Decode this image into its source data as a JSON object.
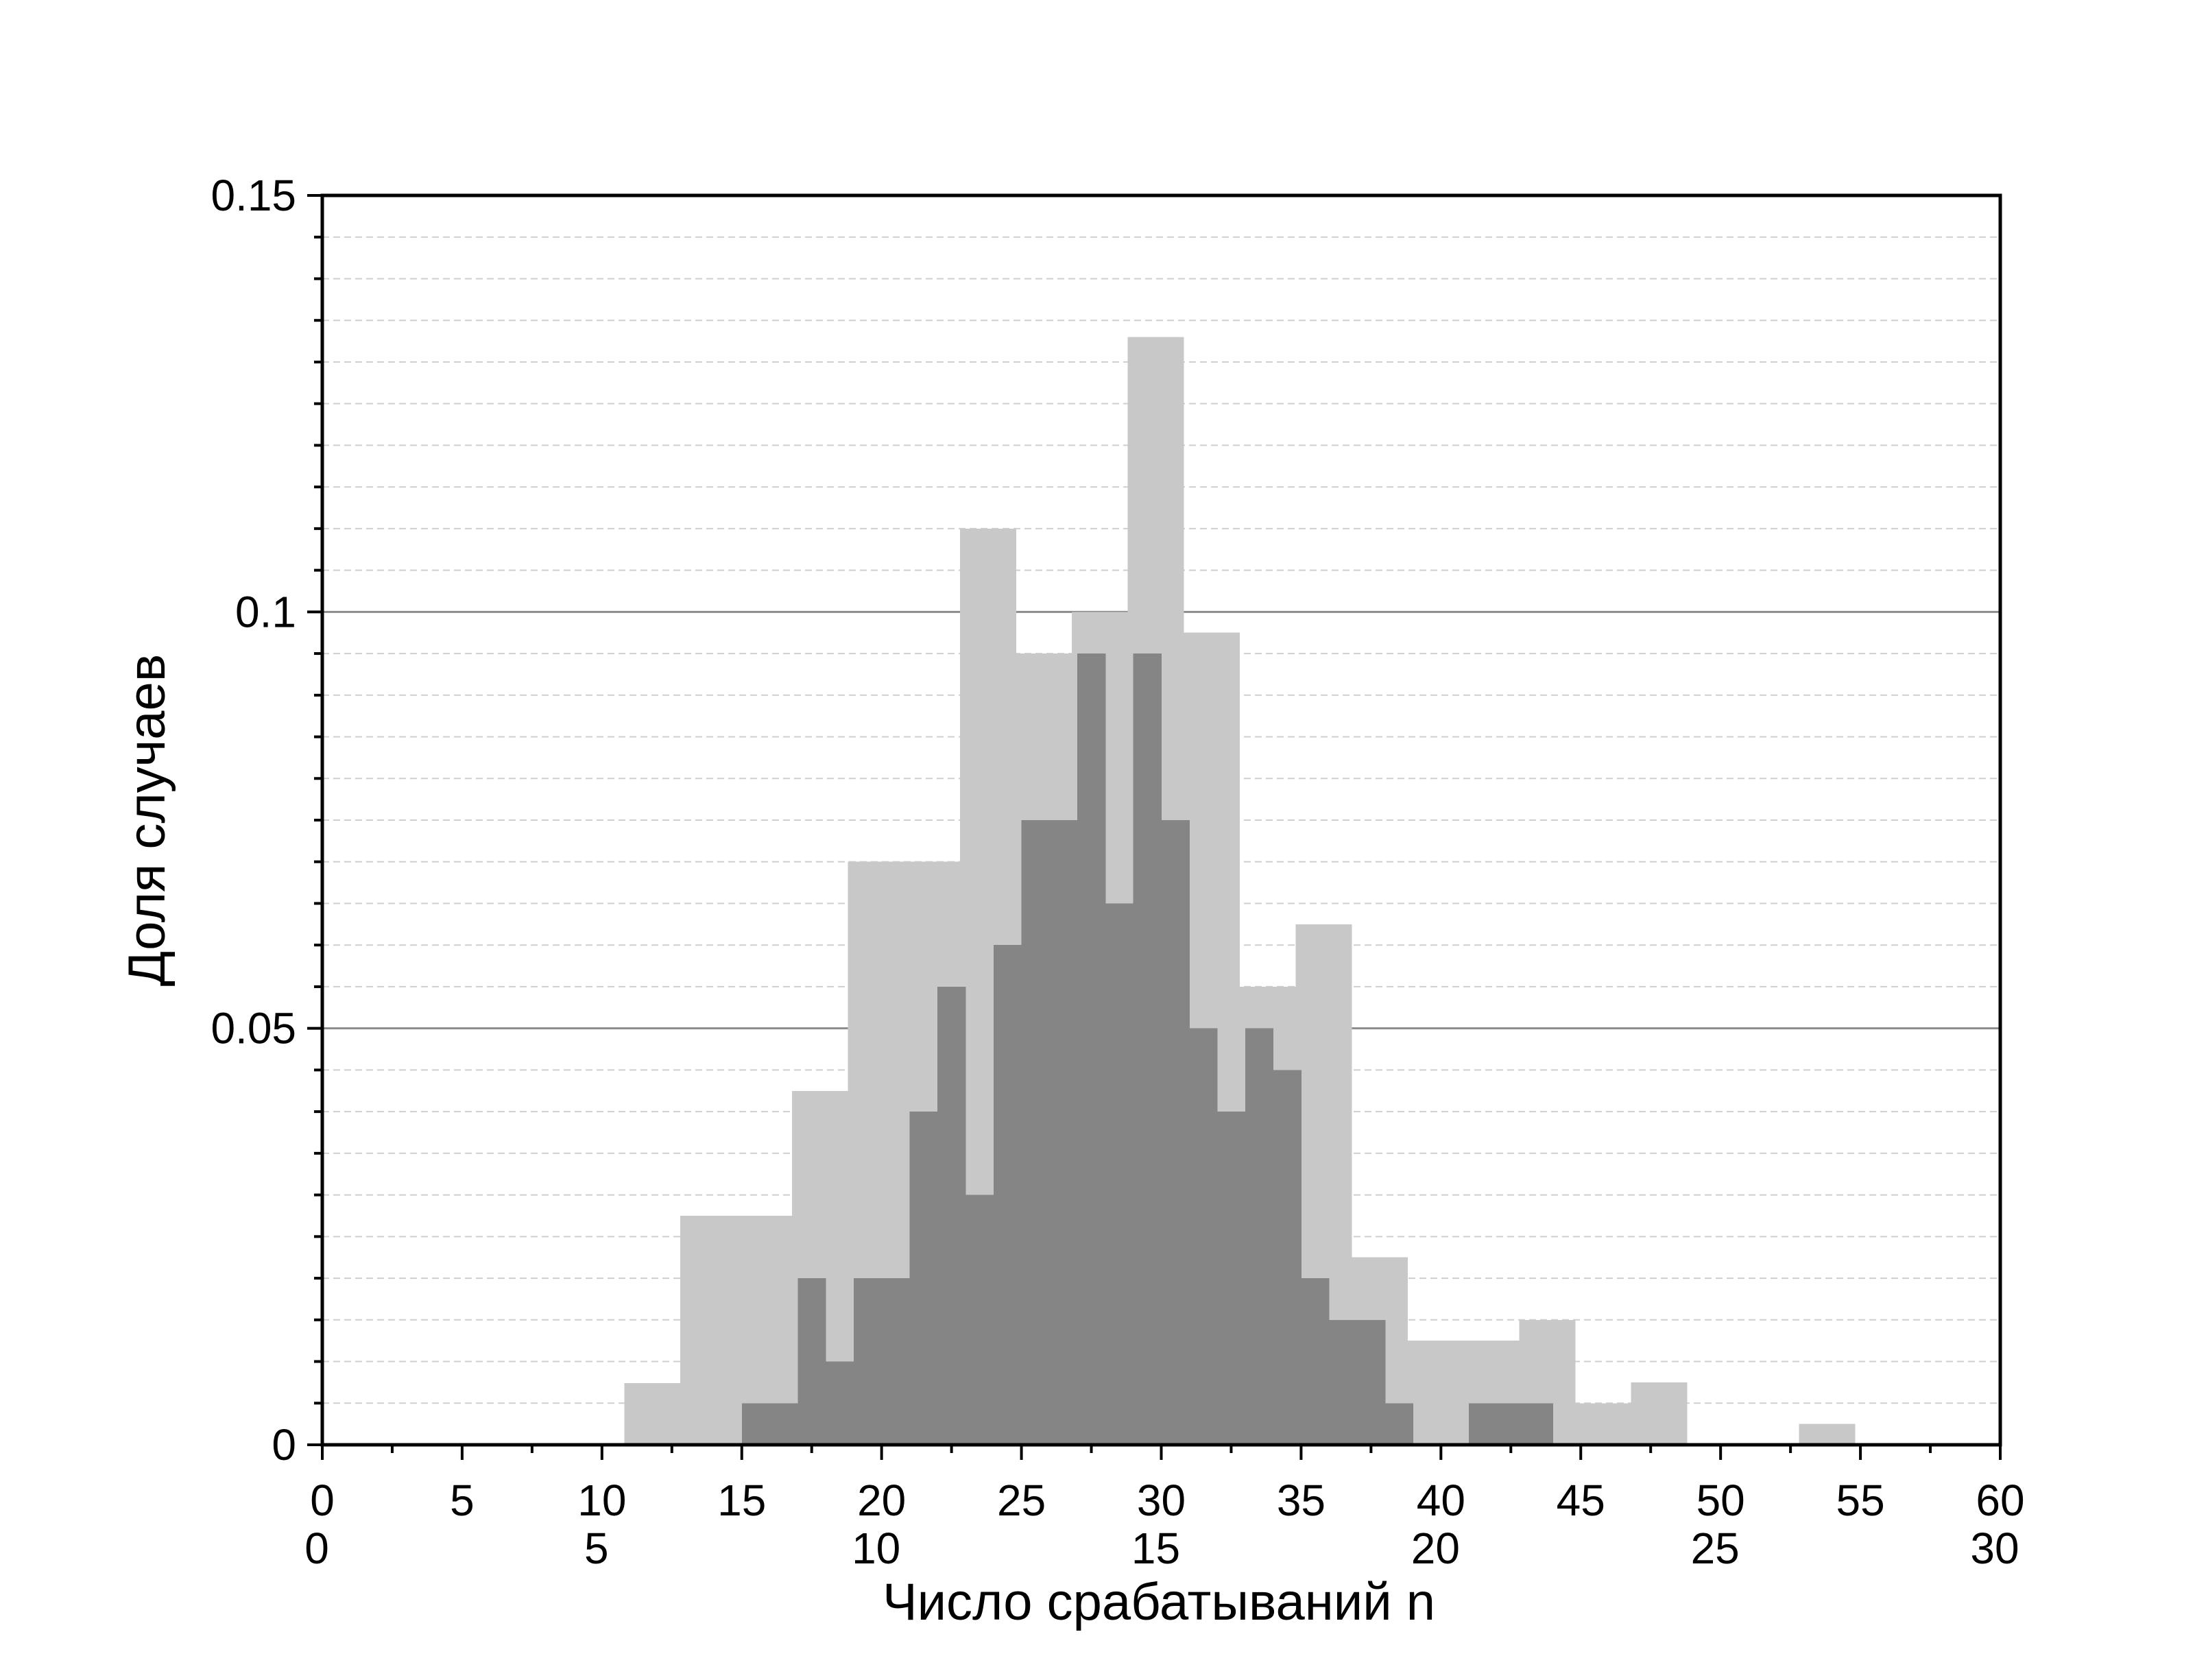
{
  "chart_data": {
    "type": "bar",
    "ylabel": "Доля случаев",
    "xlabel": "Число срабатываний n",
    "x_axis_top_labels": [
      "0",
      "5",
      "10",
      "15",
      "20",
      "25",
      "30",
      "35",
      "40",
      "45",
      "50",
      "55",
      "60"
    ],
    "x_axis_bottom_labels": [
      "0",
      "5",
      "10",
      "15",
      "20",
      "25",
      "30"
    ],
    "y_axis_labels": [
      "0",
      "0.05",
      "0.1",
      "0.15"
    ],
    "xlim": [
      0,
      60
    ],
    "ylim": [
      0,
      0.15
    ],
    "colors": {
      "light": "#c8c8c8",
      "dark": "#858585",
      "major_grid": "#8c8c8c",
      "minor_grid": "#cfcfcf"
    },
    "series": [
      {
        "bin_width": 2,
        "color": "light",
        "bars": [
          {
            "x": 10.8,
            "y": 0.0074
          },
          {
            "x": 12.8,
            "y": 0.0275
          },
          {
            "x": 14.8,
            "y": 0.0275
          },
          {
            "x": 16.8,
            "y": 0.0425
          },
          {
            "x": 18.8,
            "y": 0.07
          },
          {
            "x": 20.8,
            "y": 0.07
          },
          {
            "x": 22.8,
            "y": 0.11
          },
          {
            "x": 24.8,
            "y": 0.095
          },
          {
            "x": 26.8,
            "y": 0.1
          },
          {
            "x": 28.8,
            "y": 0.133
          },
          {
            "x": 30.8,
            "y": 0.0975
          },
          {
            "x": 32.8,
            "y": 0.055
          },
          {
            "x": 34.8,
            "y": 0.0625
          },
          {
            "x": 36.8,
            "y": 0.0225
          },
          {
            "x": 38.8,
            "y": 0.0125
          },
          {
            "x": 40.8,
            "y": 0.0125
          },
          {
            "x": 42.8,
            "y": 0.015
          },
          {
            "x": 44.8,
            "y": 0.005
          },
          {
            "x": 46.8,
            "y": 0.0075
          },
          {
            "x": 48.8,
            "y": 0.0
          },
          {
            "x": 50.8,
            "y": 0.0
          },
          {
            "x": 52.8,
            "y": 0.0025
          }
        ]
      },
      {
        "bin_width": 1,
        "color": "dark",
        "bars": [
          {
            "x": 15,
            "y": 0.005
          },
          {
            "x": 16,
            "y": 0.005
          },
          {
            "x": 17,
            "y": 0.02
          },
          {
            "x": 18,
            "y": 0.01
          },
          {
            "x": 19,
            "y": 0.02
          },
          {
            "x": 20,
            "y": 0.02
          },
          {
            "x": 21,
            "y": 0.04
          },
          {
            "x": 22,
            "y": 0.055
          },
          {
            "x": 23,
            "y": 0.03
          },
          {
            "x": 24,
            "y": 0.06
          },
          {
            "x": 25,
            "y": 0.075
          },
          {
            "x": 26,
            "y": 0.075
          },
          {
            "x": 27,
            "y": 0.095
          },
          {
            "x": 28,
            "y": 0.065
          },
          {
            "x": 29,
            "y": 0.095
          },
          {
            "x": 30,
            "y": 0.075
          },
          {
            "x": 31,
            "y": 0.05
          },
          {
            "x": 32,
            "y": 0.04
          },
          {
            "x": 33,
            "y": 0.05
          },
          {
            "x": 34,
            "y": 0.045
          },
          {
            "x": 35,
            "y": 0.02
          },
          {
            "x": 36,
            "y": 0.015
          },
          {
            "x": 37,
            "y": 0.015
          },
          {
            "x": 38,
            "y": 0.005
          },
          {
            "x": 39,
            "y": 0.0
          },
          {
            "x": 40,
            "y": 0.0
          },
          {
            "x": 41,
            "y": 0.005
          },
          {
            "x": 42,
            "y": 0.005
          },
          {
            "x": 43,
            "y": 0.005
          }
        ]
      }
    ]
  }
}
